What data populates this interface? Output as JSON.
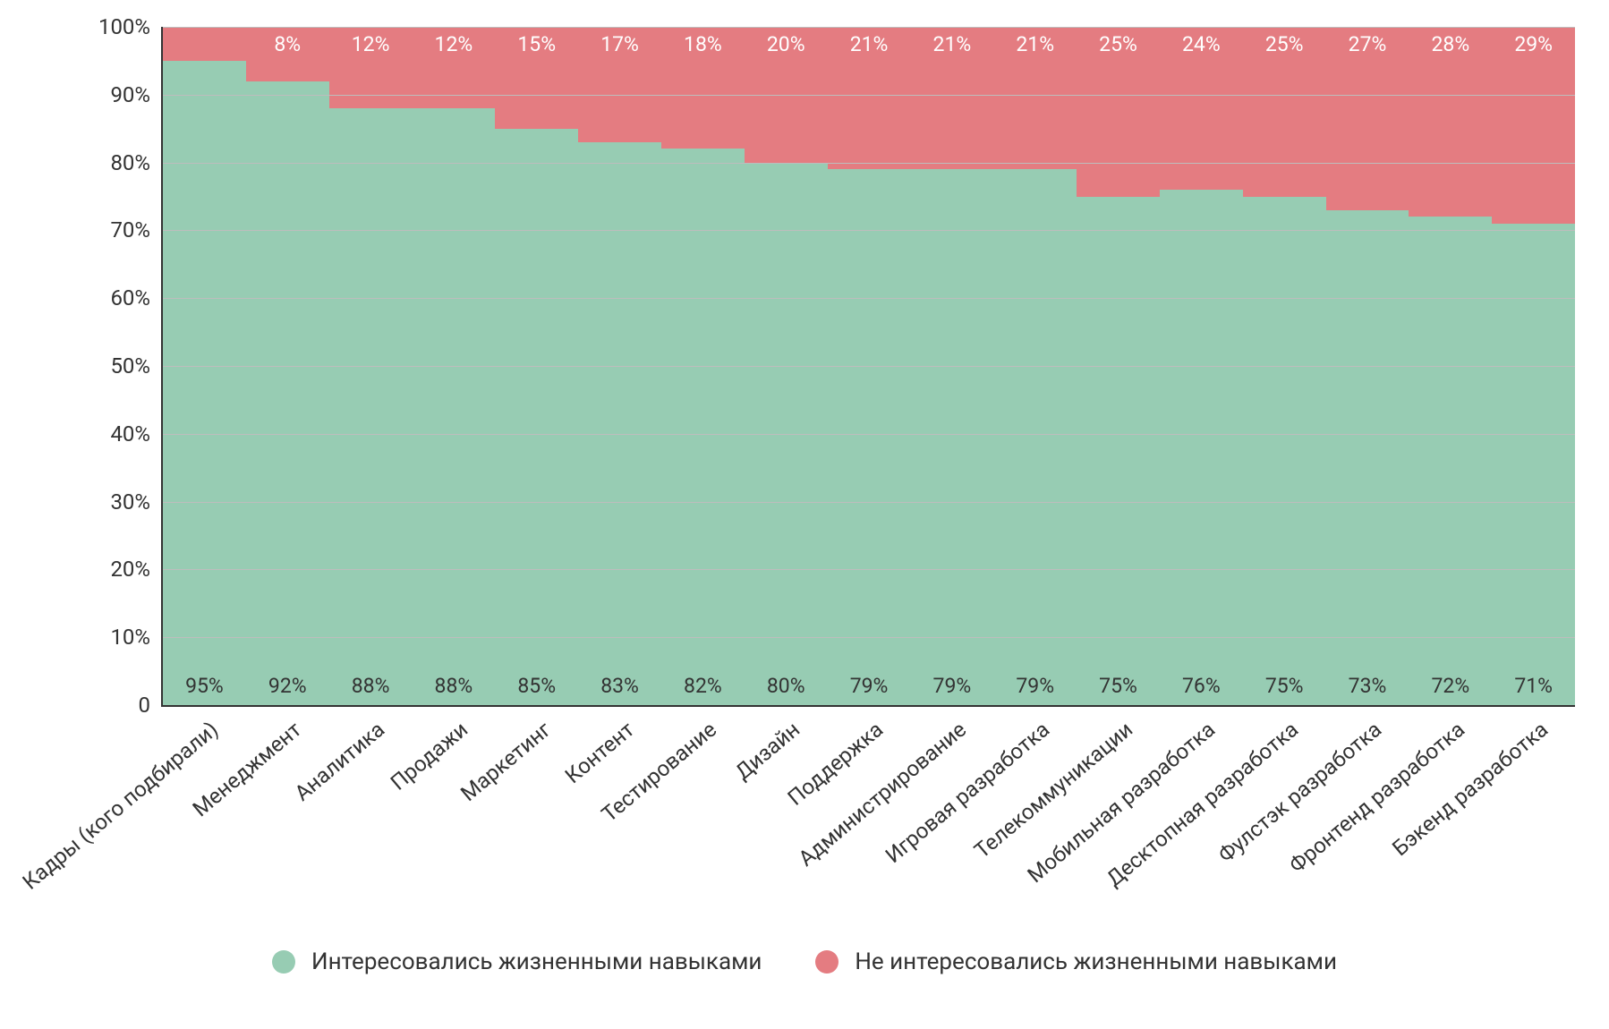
{
  "chart": {
    "type": "stacked-bar-100",
    "background_color": "#ffffff",
    "axis_color": "#333333",
    "grid_color": "#bdbdbd",
    "tick_label_color": "#333333",
    "tick_fontsize": 24,
    "datalabel_bottom_color": "#333333",
    "datalabel_top_color": "#ffffff",
    "datalabel_fontsize": 23,
    "xlabel_fontsize": 24,
    "xlabel_rotation_deg": -40,
    "ylim": [
      0,
      100
    ],
    "ytick_step": 10,
    "yticks": [
      {
        "v": 0,
        "label": "0"
      },
      {
        "v": 10,
        "label": "10%"
      },
      {
        "v": 20,
        "label": "20%"
      },
      {
        "v": 30,
        "label": "30%"
      },
      {
        "v": 40,
        "label": "40%"
      },
      {
        "v": 50,
        "label": "50%"
      },
      {
        "v": 60,
        "label": "60%"
      },
      {
        "v": 70,
        "label": "70%"
      },
      {
        "v": 80,
        "label": "80%"
      },
      {
        "v": 90,
        "label": "90%"
      },
      {
        "v": 100,
        "label": "100%"
      }
    ],
    "series": [
      {
        "key": "interested",
        "label": "Интересовались жизненными навыками",
        "color": "#97ccb3"
      },
      {
        "key": "not_interested",
        "label": "Не интересовались жизненными навыками",
        "color": "#e47c81"
      }
    ],
    "categories": [
      {
        "label": "Кадры (кого подбирали)",
        "interested": 95,
        "not_interested": 5,
        "interested_label": "95%",
        "not_interested_label": ""
      },
      {
        "label": "Менеджмент",
        "interested": 92,
        "not_interested": 8,
        "interested_label": "92%",
        "not_interested_label": "8%"
      },
      {
        "label": "Аналитика",
        "interested": 88,
        "not_interested": 12,
        "interested_label": "88%",
        "not_interested_label": "12%"
      },
      {
        "label": "Продажи",
        "interested": 88,
        "not_interested": 12,
        "interested_label": "88%",
        "not_interested_label": "12%"
      },
      {
        "label": "Маркетинг",
        "interested": 85,
        "not_interested": 15,
        "interested_label": "85%",
        "not_interested_label": "15%"
      },
      {
        "label": "Контент",
        "interested": 83,
        "not_interested": 17,
        "interested_label": "83%",
        "not_interested_label": "17%"
      },
      {
        "label": "Тестирование",
        "interested": 82,
        "not_interested": 18,
        "interested_label": "82%",
        "not_interested_label": "18%"
      },
      {
        "label": "Дизайн",
        "interested": 80,
        "not_interested": 20,
        "interested_label": "80%",
        "not_interested_label": "20%"
      },
      {
        "label": "Поддержка",
        "interested": 79,
        "not_interested": 21,
        "interested_label": "79%",
        "not_interested_label": "21%"
      },
      {
        "label": "Администрирование",
        "interested": 79,
        "not_interested": 21,
        "interested_label": "79%",
        "not_interested_label": "21%"
      },
      {
        "label": "Игровая разработка",
        "interested": 79,
        "not_interested": 21,
        "interested_label": "79%",
        "not_interested_label": "21%"
      },
      {
        "label": "Телекоммуникации",
        "interested": 75,
        "not_interested": 25,
        "interested_label": "75%",
        "not_interested_label": "25%"
      },
      {
        "label": "Мобильная разработка",
        "interested": 76,
        "not_interested": 24,
        "interested_label": "76%",
        "not_interested_label": "24%"
      },
      {
        "label": "Десктопная разработка",
        "interested": 75,
        "not_interested": 25,
        "interested_label": "75%",
        "not_interested_label": "25%"
      },
      {
        "label": "Фулстэк разработка",
        "interested": 73,
        "not_interested": 27,
        "interested_label": "73%",
        "not_interested_label": "27%"
      },
      {
        "label": "Фронтенд разработка",
        "interested": 72,
        "not_interested": 28,
        "interested_label": "72%",
        "not_interested_label": "28%"
      },
      {
        "label": "Бэкенд разработка",
        "interested": 71,
        "not_interested": 29,
        "interested_label": "71%",
        "not_interested_label": "29%"
      }
    ],
    "legend": {
      "fontsize": 26,
      "text_color": "#333333",
      "swatch_shape": "circle"
    }
  }
}
